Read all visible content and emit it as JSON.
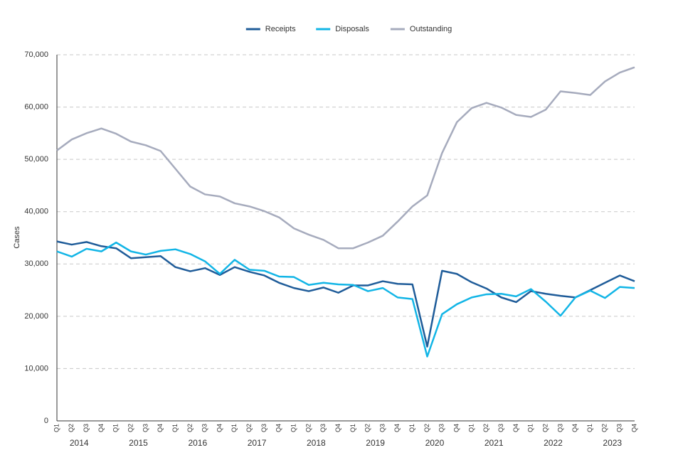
{
  "chart_data": {
    "type": "line",
    "y_label": "Cases",
    "categories": [
      "Q1",
      "Q2",
      "Q3",
      "Q4",
      "Q1",
      "Q2",
      "Q3",
      "Q4",
      "Q1",
      "Q2",
      "Q3",
      "Q4",
      "Q1",
      "Q2",
      "Q3",
      "Q4",
      "Q1",
      "Q2",
      "Q3",
      "Q4",
      "Q1",
      "Q2",
      "Q3",
      "Q4",
      "Q1",
      "Q2",
      "Q3",
      "Q4",
      "Q1",
      "Q2",
      "Q3",
      "Q4",
      "Q1",
      "Q2",
      "Q3",
      "Q4",
      "Q1",
      "Q2",
      "Q3",
      "Q4"
    ],
    "years": [
      "2014",
      "2015",
      "2016",
      "2017",
      "2018",
      "2019",
      "2020",
      "2021",
      "2022",
      "2023"
    ],
    "series": [
      {
        "name": "Receipts",
        "color": "#1f5c99",
        "values": [
          34300,
          33700,
          34200,
          33400,
          33000,
          31100,
          31300,
          31500,
          29400,
          28600,
          29200,
          27900,
          29400,
          28500,
          27800,
          26400,
          25400,
          24800,
          25500,
          24500,
          25900,
          25900,
          26700,
          26200,
          26100,
          14200,
          28700,
          28100,
          26500,
          25300,
          23600,
          22700,
          24800,
          24300,
          23900,
          23600,
          25000,
          26400,
          27800,
          26700
        ]
      },
      {
        "name": "Disposals",
        "color": "#12b5e6",
        "values": [
          32400,
          31400,
          32900,
          32400,
          34100,
          32400,
          31800,
          32500,
          32800,
          31900,
          30500,
          28100,
          30800,
          28900,
          28700,
          27600,
          27500,
          26000,
          26400,
          26100,
          26000,
          24800,
          25400,
          23600,
          23300,
          12300,
          20400,
          22300,
          23600,
          24200,
          24300,
          23800,
          25200,
          22800,
          20100,
          23600,
          24900,
          23500,
          25600,
          25400
        ]
      },
      {
        "name": "Outstanding",
        "color": "#a6abbd",
        "values": [
          51700,
          53800,
          55000,
          55900,
          54900,
          53400,
          52700,
          51600,
          48200,
          44800,
          43300,
          42900,
          41600,
          41000,
          40100,
          38900,
          36800,
          35600,
          34600,
          33000,
          33000,
          34100,
          35400,
          38100,
          41000,
          43100,
          51200,
          57100,
          59800,
          60800,
          59900,
          58500,
          58100,
          59500,
          63000,
          62700,
          62300,
          64900,
          66600,
          67600
        ]
      }
    ],
    "ylim": [
      0,
      70000
    ],
    "yticks": [
      0,
      {
        "value": 10000,
        "label": "10,000"
      },
      {
        "value": 20000,
        "label": "20,000"
      },
      {
        "value": 30000,
        "label": "30,000"
      },
      {
        "value": 40000,
        "label": "40,000"
      },
      {
        "value": 50000,
        "label": "50,000"
      },
      {
        "value": 60000,
        "label": "60,000"
      },
      {
        "value": 70000,
        "label": "70,000"
      }
    ],
    "grid": true,
    "legend": "top"
  }
}
